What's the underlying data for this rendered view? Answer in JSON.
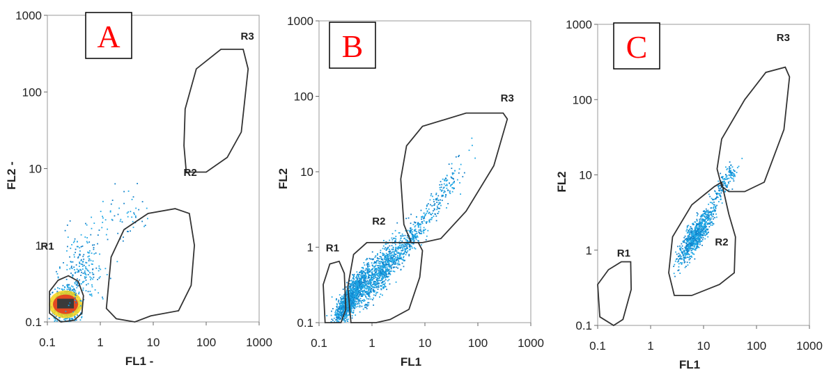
{
  "colors": {
    "letter": "#ff0000",
    "events": "#1fa8e6",
    "events_dense": "#0f7fc9",
    "hot_core": "#e23a1f",
    "warm_core": "#f5d21a",
    "gate_line": "#333333"
  },
  "chart_data": [
    {
      "panel_letter": "A",
      "type": "scatter",
      "x_scale": "log",
      "y_scale": "log",
      "xlim": [
        0.1,
        1000
      ],
      "ylim": [
        0.1,
        1000
      ],
      "xlabel": "FL1 -",
      "ylabel": "FL2 -",
      "x_ticks": [
        "0.1",
        "1",
        "10",
        "100",
        "1000"
      ],
      "y_ticks": [
        "0.1",
        "1",
        "10",
        "100",
        "1000"
      ],
      "regions": [
        {
          "name": "R1",
          "polygon": [
            [
              0.11,
              0.13
            ],
            [
              0.11,
              0.25
            ],
            [
              0.16,
              0.35
            ],
            [
              0.25,
              0.4
            ],
            [
              0.38,
              0.34
            ],
            [
              0.48,
              0.22
            ],
            [
              0.45,
              0.13
            ],
            [
              0.32,
              0.105
            ],
            [
              0.18,
              0.1
            ]
          ]
        },
        {
          "name": "R2",
          "polygon": [
            [
              1.3,
              0.15
            ],
            [
              1.6,
              0.7
            ],
            [
              2.8,
              1.6
            ],
            [
              8,
              2.6
            ],
            [
              26,
              3.0
            ],
            [
              48,
              2.6
            ],
            [
              60,
              1.0
            ],
            [
              52,
              0.3
            ],
            [
              30,
              0.14
            ],
            [
              9,
              0.12
            ],
            [
              4.5,
              0.1
            ],
            [
              2,
              0.11
            ]
          ]
        },
        {
          "name": "R3",
          "polygon": [
            [
              42,
              9
            ],
            [
              38,
              20
            ],
            [
              40,
              60
            ],
            [
              65,
              200
            ],
            [
              190,
              360
            ],
            [
              500,
              360
            ],
            [
              620,
              200
            ],
            [
              460,
              30
            ],
            [
              250,
              14
            ],
            [
              100,
              9
            ]
          ]
        }
      ],
      "populations": [
        {
          "center": [
            0.22,
            0.17
          ],
          "spread": [
            0.18,
            0.18
          ],
          "count": 900,
          "hotcore": true
        },
        {
          "center": [
            0.45,
            0.45
          ],
          "spread": [
            0.35,
            0.45
          ],
          "count": 220,
          "hotcore": false
        },
        {
          "center": [
            2.5,
            2.5
          ],
          "spread": [
            0.45,
            0.45
          ],
          "count": 60,
          "hotcore": false
        }
      ],
      "region_labels": [
        {
          "name": "R1",
          "at": [
            0.1,
            0.88
          ]
        },
        {
          "name": "R2",
          "at": [
            50,
            8.0
          ]
        },
        {
          "name": "R3",
          "at": [
            600,
            480
          ]
        }
      ]
    },
    {
      "panel_letter": "B",
      "type": "scatter",
      "x_scale": "log",
      "y_scale": "log",
      "xlim": [
        0.1,
        1000
      ],
      "ylim": [
        0.1,
        1000
      ],
      "xlabel": "FL1",
      "ylabel": "FL2",
      "x_ticks": [
        "0.1",
        "1",
        "10",
        "100",
        "1000"
      ],
      "y_ticks": [
        "0.1",
        "1",
        "10",
        "100",
        "1000"
      ],
      "regions": [
        {
          "name": "R1",
          "polygon": [
            [
              0.13,
              0.1
            ],
            [
              0.12,
              0.32
            ],
            [
              0.16,
              0.6
            ],
            [
              0.24,
              0.65
            ],
            [
              0.3,
              0.45
            ],
            [
              0.32,
              0.15
            ],
            [
              0.26,
              0.1
            ]
          ]
        },
        {
          "name": "R2",
          "polygon": [
            [
              0.4,
              0.1
            ],
            [
              0.35,
              0.3
            ],
            [
              0.45,
              0.8
            ],
            [
              0.8,
              1.15
            ],
            [
              4,
              1.15
            ],
            [
              7.5,
              1.15
            ],
            [
              9,
              0.9
            ],
            [
              8,
              0.4
            ],
            [
              5,
              0.15
            ],
            [
              2.2,
              0.11
            ],
            [
              1.2,
              0.1
            ]
          ]
        },
        {
          "name": "R3",
          "polygon": [
            [
              5.5,
              1.15
            ],
            [
              4,
              2
            ],
            [
              3.5,
              8
            ],
            [
              4.5,
              22
            ],
            [
              9,
              40
            ],
            [
              60,
              60
            ],
            [
              300,
              60
            ],
            [
              360,
              50
            ],
            [
              200,
              12
            ],
            [
              60,
              3
            ],
            [
              20,
              1.3
            ],
            [
              9,
              1.15
            ]
          ]
        }
      ],
      "populations": [
        {
          "center": [
            0.4,
            0.22
          ],
          "spread": [
            0.32,
            0.25
          ],
          "count": 1300,
          "hotcore": false
        },
        {
          "center": [
            1.5,
            0.5
          ],
          "spread": [
            0.35,
            0.3
          ],
          "count": 700,
          "hotcore": false
        },
        {
          "center": [
            5,
            1.2
          ],
          "spread": [
            0.28,
            0.22
          ],
          "count": 260,
          "hotcore": false
        },
        {
          "center": [
            20,
            5
          ],
          "spread": [
            0.35,
            0.3
          ],
          "count": 160,
          "hotcore": false
        }
      ],
      "region_labels": [
        {
          "name": "R1",
          "at": [
            0.18,
            0.88
          ]
        },
        {
          "name": "R2",
          "at": [
            1.35,
            2.0
          ]
        },
        {
          "name": "R3",
          "at": [
            360,
            85
          ]
        }
      ]
    },
    {
      "panel_letter": "C",
      "type": "scatter",
      "x_scale": "log",
      "y_scale": "log",
      "xlim": [
        0.1,
        1000
      ],
      "ylim": [
        0.1,
        1000
      ],
      "xlabel": "FL1",
      "ylabel": "FL2",
      "x_ticks": [
        "0.1",
        "1",
        "10",
        "100",
        "1000"
      ],
      "y_ticks": [
        "0.1",
        "1",
        "10",
        "100",
        "1000"
      ],
      "regions": [
        {
          "name": "R1",
          "polygon": [
            [
              0.11,
              0.13
            ],
            [
              0.1,
              0.35
            ],
            [
              0.16,
              0.55
            ],
            [
              0.28,
              0.7
            ],
            [
              0.42,
              0.7
            ],
            [
              0.43,
              0.3
            ],
            [
              0.3,
              0.12
            ],
            [
              0.2,
              0.1
            ]
          ]
        },
        {
          "name": "R2",
          "polygon": [
            [
              2.8,
              0.25
            ],
            [
              2.2,
              0.5
            ],
            [
              2.6,
              1.5
            ],
            [
              6,
              4
            ],
            [
              16,
              7
            ],
            [
              22,
              8
            ],
            [
              24,
              6
            ],
            [
              30,
              3
            ],
            [
              40,
              1.5
            ],
            [
              38,
              0.5
            ],
            [
              20,
              0.35
            ],
            [
              6,
              0.25
            ]
          ]
        },
        {
          "name": "R3",
          "polygon": [
            [
              22,
              7
            ],
            [
              18,
              12
            ],
            [
              22,
              30
            ],
            [
              60,
              100
            ],
            [
              150,
              230
            ],
            [
              350,
              270
            ],
            [
              420,
              200
            ],
            [
              330,
              40
            ],
            [
              140,
              8
            ],
            [
              60,
              6
            ],
            [
              30,
              6
            ]
          ]
        }
      ],
      "populations": [
        {
          "center": [
            7,
            1.6
          ],
          "spread": [
            0.3,
            0.25
          ],
          "count": 800,
          "hotcore": false
        },
        {
          "center": [
            25,
            8
          ],
          "spread": [
            0.22,
            0.2
          ],
          "count": 150,
          "hotcore": false
        }
      ],
      "region_labels": [
        {
          "name": "R1",
          "at": [
            0.31,
            0.82
          ]
        },
        {
          "name": "R2",
          "at": [
            22,
            1.15
          ]
        },
        {
          "name": "R3",
          "at": [
            320,
            600
          ]
        }
      ]
    }
  ]
}
